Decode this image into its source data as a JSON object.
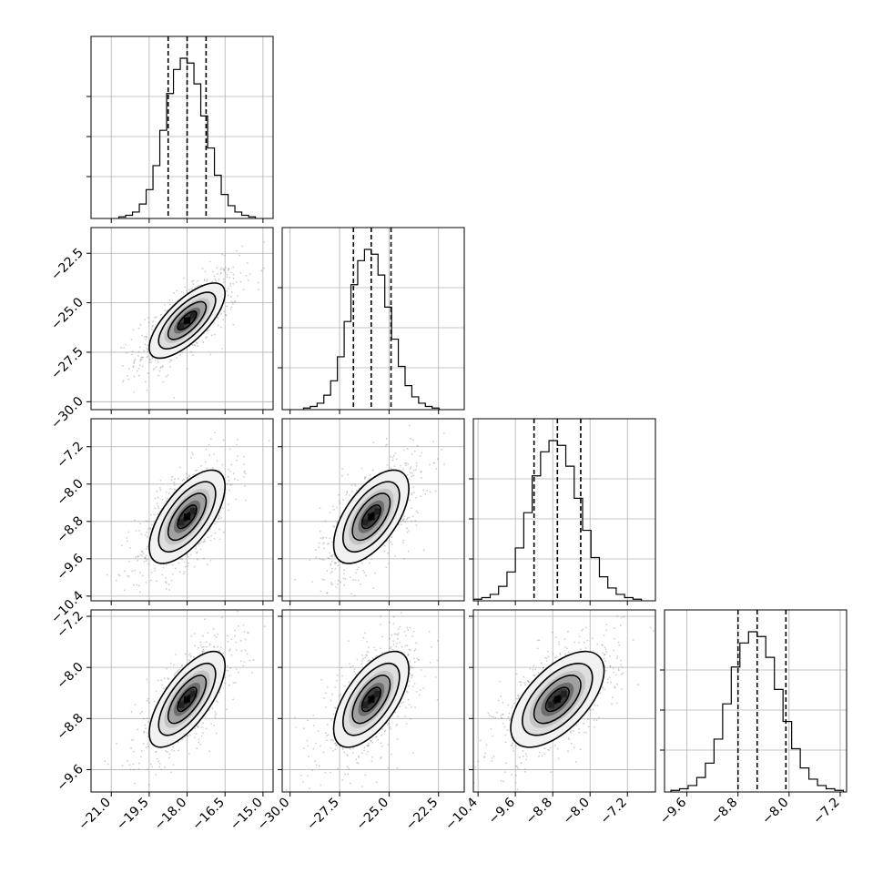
{
  "chart_data": {
    "type": "corner",
    "title": "",
    "parameters": [
      {
        "label": "",
        "median": -18.0,
        "q16": -18.75,
        "q84": -17.25,
        "range": [
          -21.8,
          -14.6
        ],
        "ticks": [
          "−21.0",
          "−19.5",
          "−18.0",
          "−16.5",
          "−15.0"
        ],
        "tick_values": [
          -21.0,
          -19.5,
          -18.0,
          -16.5,
          -15.0
        ]
      },
      {
        "label": "",
        "median": -25.9,
        "q16": -26.8,
        "q84": -24.9,
        "range": [
          -30.4,
          -21.2
        ],
        "ticks": [
          "−30.0",
          "−27.5",
          "−25.0",
          "−22.5"
        ],
        "tick_values": [
          -30.0,
          -27.5,
          -25.0,
          -22.5
        ]
      },
      {
        "label": "",
        "median": -8.7,
        "q16": -9.2,
        "q84": -8.2,
        "range": [
          -10.5,
          -6.6
        ],
        "ticks": [
          "−10.4",
          "−9.6",
          "−8.8",
          "−8.0",
          "−7.2"
        ],
        "tick_values": [
          -10.4,
          -9.6,
          -8.8,
          -8.0,
          -7.2
        ]
      },
      {
        "label": "",
        "median": -8.5,
        "q16": -8.8,
        "q84": -8.05,
        "range": [
          -9.95,
          -7.1
        ],
        "ticks": [
          "−9.6",
          "−8.8",
          "−8.0",
          "−7.2"
        ],
        "tick_values": [
          -9.6,
          -8.8,
          -8.0,
          -7.2
        ]
      }
    ],
    "correlations": {
      "1,0": 0.72,
      "2,0": 0.65,
      "2,1": 0.6,
      "3,0": 0.7,
      "3,1": 0.62,
      "3,2": 0.6
    },
    "histogram_bins": 20,
    "histogram_relative_heights": [
      0.01,
      0.02,
      0.04,
      0.09,
      0.18,
      0.33,
      0.55,
      0.78,
      0.93,
      1.0,
      0.97,
      0.84,
      0.64,
      0.44,
      0.27,
      0.15,
      0.08,
      0.04,
      0.02,
      0.01
    ],
    "contour_levels_sigma": [
      0.5,
      1.0,
      1.5,
      2.0
    ],
    "grid": true,
    "quantile_lines": "dashed"
  }
}
